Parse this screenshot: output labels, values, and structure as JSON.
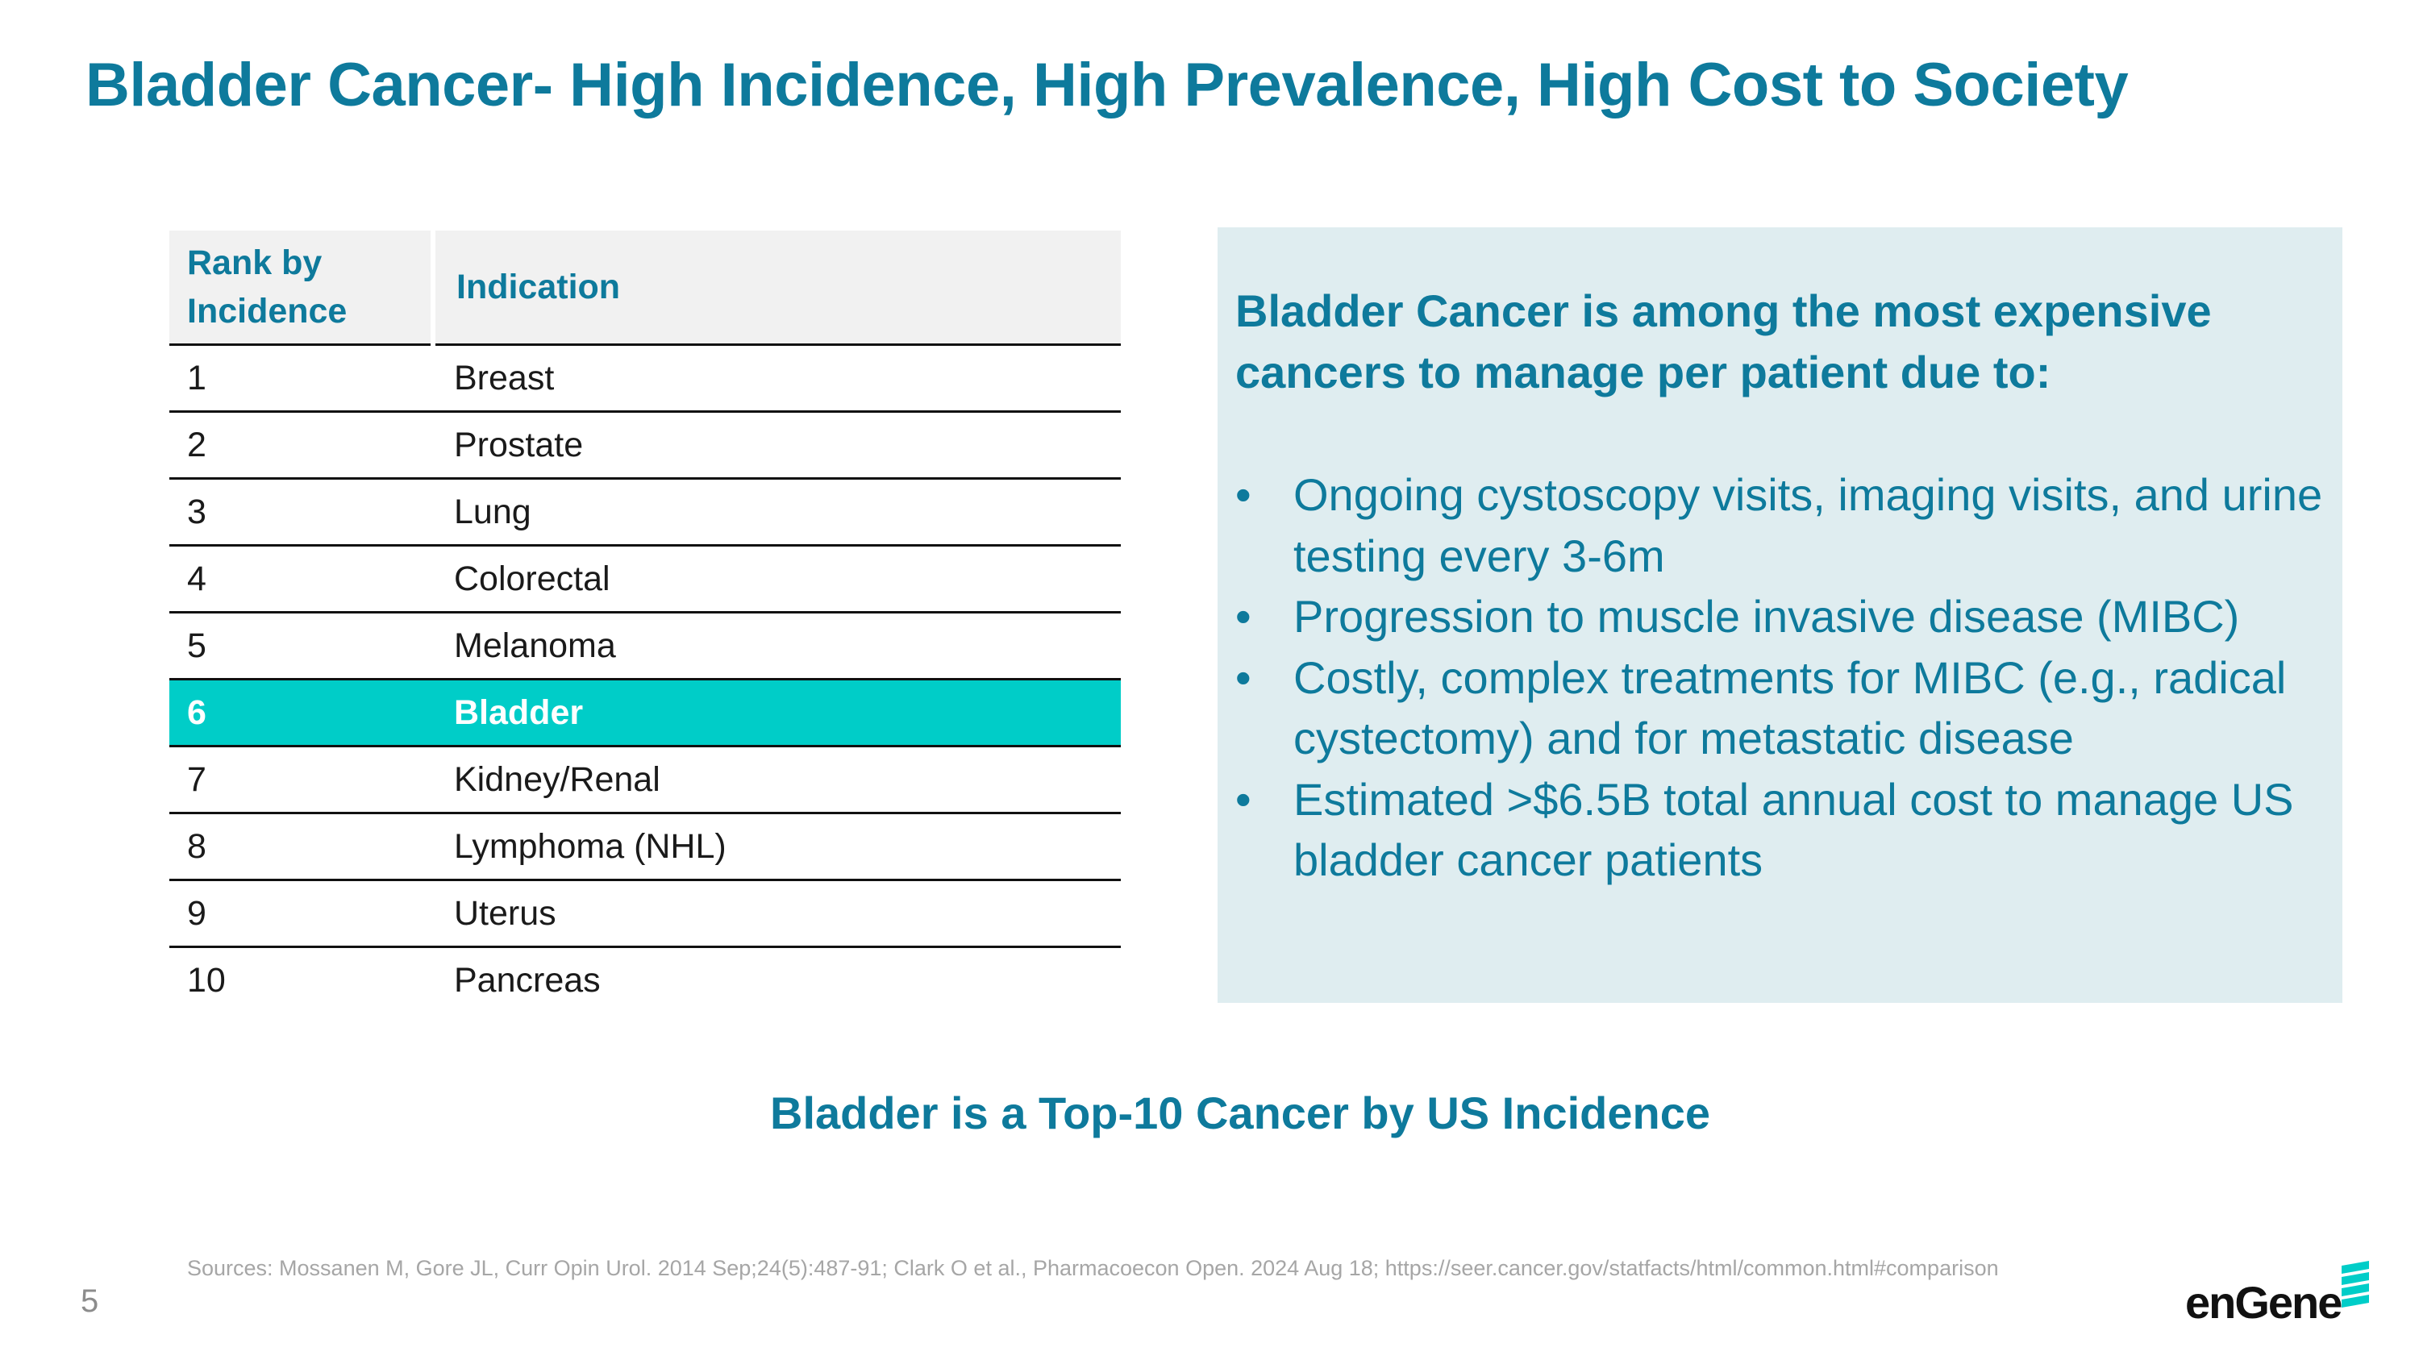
{
  "slide": {
    "title": "Bladder Cancer- High Incidence, High Prevalence, High Cost to Society",
    "page_number": "5"
  },
  "table": {
    "headers": {
      "rank": "Rank by Incidence",
      "indication": "Indication"
    },
    "rows": [
      {
        "rank": "1",
        "indication": "Breast"
      },
      {
        "rank": "2",
        "indication": "Prostate"
      },
      {
        "rank": "3",
        "indication": "Lung"
      },
      {
        "rank": "4",
        "indication": "Colorectal"
      },
      {
        "rank": "5",
        "indication": "Melanoma"
      },
      {
        "rank": "6",
        "indication": "Bladder"
      },
      {
        "rank": "7",
        "indication": "Kidney/Renal"
      },
      {
        "rank": "8",
        "indication": "Lymphoma (NHL)"
      },
      {
        "rank": "9",
        "indication": "Uterus"
      },
      {
        "rank": "10",
        "indication": "Pancreas"
      }
    ],
    "highlight_rank": "6",
    "highlight_color": "#00cdc8"
  },
  "panel": {
    "heading": "Bladder Cancer is among the most expensive cancers to manage per patient due to:",
    "bullets": [
      "Ongoing cystoscopy visits, imaging visits, and urine testing every 3-6m",
      "Progression to muscle invasive disease (MIBC)",
      "Costly, complex treatments for MIBC (e.g., radical cystectomy) and for metastatic disease",
      "Estimated >$6.5B total annual cost to manage US bladder cancer patients"
    ],
    "bullet_symbol": "•",
    "background_color": "#dfedf0"
  },
  "tagline": "Bladder is a Top-10 Cancer by US Incidence",
  "sources": "Sources: Mossanen M, Gore JL, Curr Opin Urol. 2014 Sep;24(5):487-91; Clark O et al., Pharmacoecon Open. 2024 Aug 18; https://seer.cancer.gov/statfacts/html/common.html#comparison",
  "logo": {
    "text": "enGene",
    "mark_icon": "stacked-bars-logo-icon"
  },
  "colors": {
    "brand_blue": "#0e7a9c",
    "accent_teal": "#00cdc8"
  }
}
